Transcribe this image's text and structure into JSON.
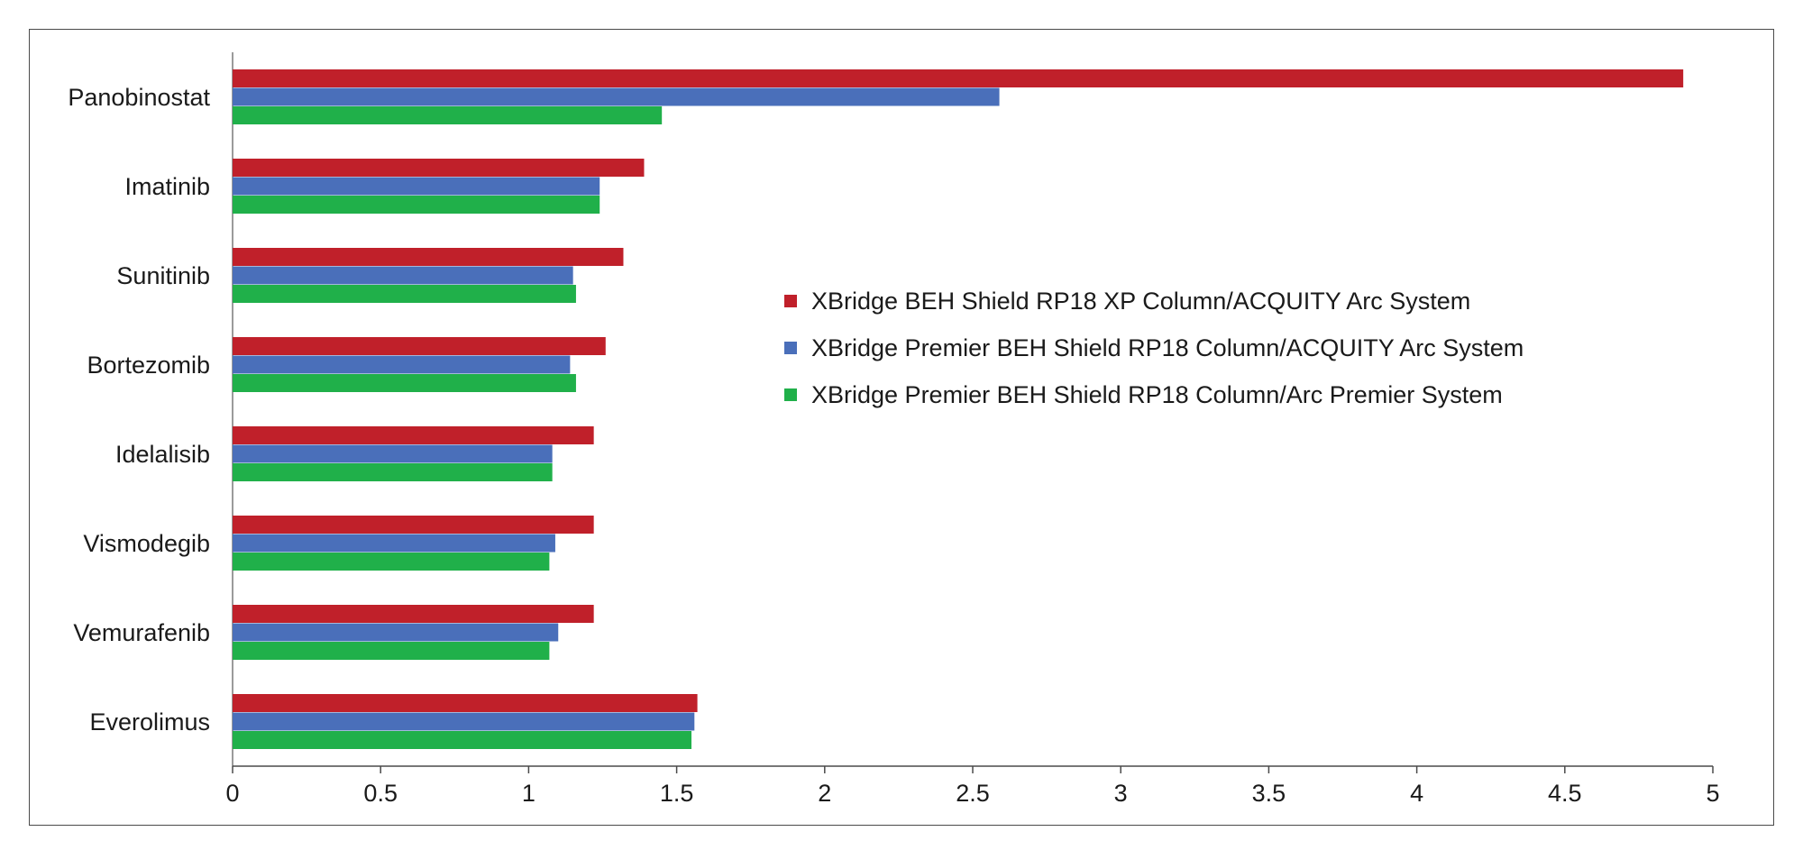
{
  "chart_data": {
    "type": "bar",
    "orientation": "horizontal",
    "categories": [
      "Panobinostat",
      "Imatinib",
      "Sunitinib",
      "Bortezomib",
      "Idelalisib",
      "Vismodegib",
      "Vemurafenib",
      "Everolimus"
    ],
    "series": [
      {
        "name": "XBridge BEH Shield RP18 XP Column/ACQUITY Arc System",
        "color": "#c0202a",
        "values": [
          4.9,
          1.39,
          1.32,
          1.26,
          1.22,
          1.22,
          1.22,
          1.57
        ]
      },
      {
        "name": "XBridge Premier BEH Shield RP18 Column/ACQUITY Arc System",
        "color": "#4a6fba",
        "values": [
          2.59,
          1.24,
          1.15,
          1.14,
          1.08,
          1.09,
          1.1,
          1.56
        ]
      },
      {
        "name": "XBridge Premier BEH Shield RP18 Column/Arc Premier System",
        "color": "#20b04a",
        "values": [
          1.45,
          1.24,
          1.16,
          1.16,
          1.08,
          1.07,
          1.07,
          1.55
        ]
      }
    ],
    "xlim": [
      0,
      5
    ],
    "xticks": [
      0,
      0.5,
      1,
      1.5,
      2,
      2.5,
      3,
      3.5,
      4,
      4.5,
      5
    ],
    "xtick_labels": [
      "0",
      "0.5",
      "1",
      "1.5",
      "2",
      "2.5",
      "3",
      "3.5",
      "4",
      "4.5",
      "5"
    ],
    "title": "",
    "xlabel": "",
    "ylabel": "",
    "grid": false,
    "legend_position": "center-right"
  }
}
